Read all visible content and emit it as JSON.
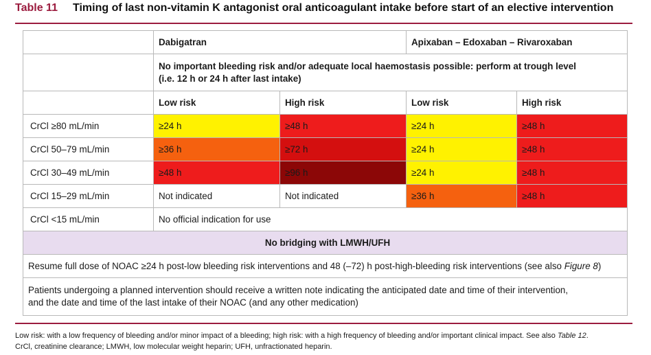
{
  "title": {
    "number": "Table 11",
    "text": "Timing of last non-vitamin K antagonist oral anticoagulant intake before start of an elective intervention"
  },
  "table": {
    "drug_headers": [
      "Dabigatran",
      "Apixaban – Edoxaban – Rivaroxaban"
    ],
    "trough_note_line1": "No important bleeding risk and/or adequate local haemostasis possible: perform at trough level",
    "trough_note_line2": "(i.e. 12 h or 24 h after last intake)",
    "risk_headers": [
      "Low risk",
      "High risk",
      "Low risk",
      "High risk"
    ],
    "rows": [
      {
        "label": "CrCl ≥80 mL/min",
        "cells": [
          {
            "text": "≥24 h",
            "color": "#fff200"
          },
          {
            "text": "≥48 h",
            "color": "#ee1c1c"
          },
          {
            "text": "≥24 h",
            "color": "#fff200"
          },
          {
            "text": "≥48 h",
            "color": "#ee1c1c"
          }
        ]
      },
      {
        "label": "CrCl 50–79 mL/min",
        "cells": [
          {
            "text": "≥36 h",
            "color": "#f5610f"
          },
          {
            "text": "≥72 h",
            "color": "#d40f0f"
          },
          {
            "text": "≥24 h",
            "color": "#fff200"
          },
          {
            "text": "≥48 h",
            "color": "#ee1c1c"
          }
        ]
      },
      {
        "label": "CrCl 30–49 mL/min",
        "cells": [
          {
            "text": "≥48 h",
            "color": "#ee1c1c"
          },
          {
            "text": "≥96 h",
            "color": "#8c0707"
          },
          {
            "text": "≥24 h",
            "color": "#fff200"
          },
          {
            "text": "≥48 h",
            "color": "#ee1c1c"
          }
        ]
      }
    ],
    "row_15_29": {
      "label": "CrCl 15–29 mL/min",
      "dabi_low": "Not indicated",
      "dabi_high": "Not indicated",
      "axa_low": "≥36 h",
      "axa_high": "≥48 h"
    },
    "row_lt15": {
      "label": "CrCl <15 mL/min",
      "text": "No official indication for use"
    },
    "bridging": "No bridging with LMWH/UFH",
    "resume_text": "Resume full dose of NOAC ≥24 h post-low bleeding risk interventions and 48 (–72) h post-high-bleeding risk interventions (see also ",
    "resume_ref": "Figure 8",
    "resume_end": ")",
    "patients_line1": "Patients undergoing a planned intervention should receive a written note indicating the anticipated date and time of their intervention,",
    "patients_line2": "and the date and time of the last intake of their NOAC (and any other medication)"
  },
  "footnote": {
    "line1_text": "Low risk: with a low frequency of bleeding and/or minor impact of a bleeding; high risk: with a high frequency of bleeding and/or important clinical impact. See also ",
    "line1_ref": "Table 12",
    "line1_end": ".",
    "line2": "CrCl, creatinine clearance; LMWH, low molecular weight heparin; UFH, unfractionated heparin."
  }
}
